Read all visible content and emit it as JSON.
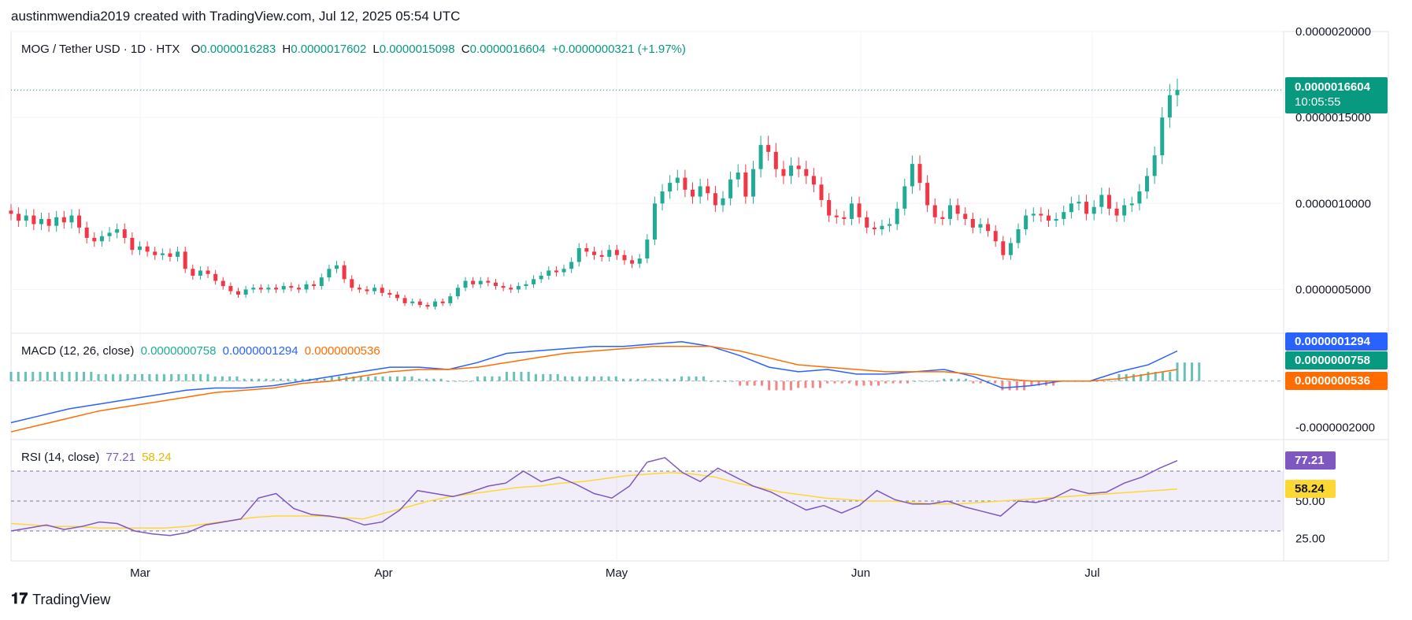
{
  "header": {
    "text": "austinmwendia2019 created with TradingView.com, Jul 12, 2025 05:54 UTC"
  },
  "footer": {
    "logo_text": "TradingView"
  },
  "colors": {
    "up": "#22ab94",
    "down": "#f23645",
    "macd": "#2962ff",
    "signal": "#ff6d00",
    "rsi": "#7e57c2",
    "rsi_ma": "#fdd835",
    "accent": "#089981"
  },
  "price_legend": {
    "symbol": "MOG / Tether USD · 1D · HTX",
    "o_label": "O",
    "o": "0.0000016283",
    "h_label": "H",
    "h": "0.0000017602",
    "l_label": "L",
    "l": "0.0000015098",
    "c_label": "C",
    "c": "0.0000016604",
    "change": "+0.0000000321 (+1.97%)"
  },
  "macd_legend": {
    "title": "MACD (12, 26, close)",
    "hist": "0.0000000758",
    "macd": "0.0000001294",
    "signal": "0.0000000536"
  },
  "rsi_legend": {
    "title": "RSI (14, close)",
    "rsi": "77.21",
    "ma": "58.24"
  },
  "tags": {
    "price": "0.0000016604",
    "countdown": "10:05:55",
    "macd": "0.0000001294",
    "hist": "0.0000000758",
    "signal": "0.0000000536",
    "rsi": "77.21",
    "rsi_ma": "58.24"
  },
  "chart_data": [
    {
      "type": "candlestick",
      "title": "MOG / Tether USD · 1D · HTX",
      "x_tick_labels": [
        "Mar",
        "Apr",
        "May",
        "Jun",
        "Jul"
      ],
      "y_tick_labels": [
        "0.0000020000",
        "0.0000015000",
        "0.0000010000",
        "0.0000005000"
      ],
      "ylim": [
        2.5e-07,
        2e-06
      ],
      "grid": true,
      "closes_approx": [
        9.4e-07,
        9e-07,
        9.3e-07,
        8.8e-07,
        9.1e-07,
        8.7e-07,
        9.2e-07,
        8.9e-07,
        9.3e-07,
        8.6e-07,
        8e-07,
        7.8e-07,
        8.1e-07,
        8.3e-07,
        8.5e-07,
        8e-07,
        7.3e-07,
        7.5e-07,
        7.2e-07,
        7e-07,
        7.1e-07,
        6.9e-07,
        7.2e-07,
        6.2e-07,
        5.8e-07,
        6.1e-07,
        5.9e-07,
        5.5e-07,
        5.2e-07,
        4.9e-07,
        4.7e-07,
        5e-07,
        5.1e-07,
        5e-07,
        5.1e-07,
        5e-07,
        5.2e-07,
        5.1e-07,
        5e-07,
        5.3e-07,
        5.2e-07,
        5.7e-07,
        6.2e-07,
        6.4e-07,
        5.6e-07,
        5.1e-07,
        5e-07,
        4.9e-07,
        5.1e-07,
        4.8e-07,
        4.7e-07,
        4.5e-07,
        4.2e-07,
        4.3e-07,
        4.1e-07,
        4e-07,
        4.3e-07,
        4.2e-07,
        4.6e-07,
        5.1e-07,
        5.5e-07,
        5.3e-07,
        5.5e-07,
        5.4e-07,
        5.2e-07,
        5.1e-07,
        5e-07,
        5.2e-07,
        5.3e-07,
        5.6e-07,
        5.8e-07,
        6.1e-07,
        6e-07,
        6.2e-07,
        6.6e-07,
        7.4e-07,
        7.2e-07,
        7e-07,
        6.9e-07,
        7.3e-07,
        7e-07,
        6.7e-07,
        6.5e-07,
        6.8e-07,
        7.9e-07,
        1e-06,
        1.07e-06,
        1.12e-06,
        1.15e-06,
        1.08e-06,
        1.04e-06,
        1.1e-06,
        1.06e-06,
        9.9e-07,
        1.03e-06,
        1.14e-06,
        1.18e-06,
        1.04e-06,
        1.2e-06,
        1.34e-06,
        1.3e-06,
        1.2e-06,
        1.16e-06,
        1.22e-06,
        1.2e-06,
        1.16e-06,
        1.11e-06,
        1.02e-06,
        9.3e-07,
        9.2e-07,
        9.1e-07,
        1e-06,
        9.2e-07,
        8.6e-07,
        8.5e-07,
        8.7e-07,
        8.8e-07,
        9.7e-07,
        1.1e-06,
        1.23e-06,
        1.12e-06,
        9.9e-07,
        9.2e-07,
        9.1e-07,
        9.9e-07,
        9.4e-07,
        9.1e-07,
        8.6e-07,
        8.8e-07,
        8.4e-07,
        7.8e-07,
        7e-07,
        7.7e-07,
        8.5e-07,
        9.3e-07,
        9.4e-07,
        9.3e-07,
        9e-07,
        9.1e-07,
        9.5e-07,
        1e-06,
        1.01e-06,
        9.4e-07,
        9.8e-07,
        1.05e-06,
        9.7e-07,
        9.3e-07,
        9.9e-07,
        1e-06,
        1.07e-06,
        1.16e-06,
        1.28e-06,
        1.5e-06,
        1.63e-06,
        1.66e-06
      ]
    },
    {
      "type": "line",
      "title": "MACD (12, 26, close)",
      "series": [
        {
          "name": "MACD",
          "values_approx": [
            -1.8e-07,
            -1.5e-07,
            -1.2e-07,
            -1e-07,
            -8e-08,
            -6e-08,
            -4e-08,
            -3e-08,
            -3e-08,
            -2e-08,
            0.0,
            2e-08,
            4e-08,
            6e-08,
            6e-08,
            5e-08,
            8e-08,
            1.2e-07,
            1.3e-07,
            1.4e-07,
            1.5e-07,
            1.5e-07,
            1.6e-07,
            1.7e-07,
            1.5e-07,
            1.1e-07,
            6e-08,
            4e-08,
            5e-08,
            3e-08,
            3e-08,
            4e-08,
            5e-08,
            2e-08,
            -3e-08,
            -2e-08,
            0.0,
            0.0,
            4e-08,
            7e-08,
            1.3e-07
          ]
        },
        {
          "name": "Signal",
          "values_approx": [
            -2.2e-07,
            -1.9e-07,
            -1.6e-07,
            -1.3e-07,
            -1.1e-07,
            -9e-08,
            -7e-08,
            -5e-08,
            -4e-08,
            -3e-08,
            -1e-08,
            0.0,
            2e-08,
            4e-08,
            5e-08,
            5e-08,
            6e-08,
            8e-08,
            1e-07,
            1.2e-07,
            1.3e-07,
            1.4e-07,
            1.5e-07,
            1.5e-07,
            1.5e-07,
            1.3e-07,
            1e-07,
            7e-08,
            6e-08,
            5e-08,
            4e-08,
            4e-08,
            4e-08,
            3e-08,
            1e-08,
            0.0,
            0.0,
            0.0,
            1e-08,
            3e-08,
            5e-08
          ]
        }
      ],
      "y_tick_labels": [
        "-0.0000002000"
      ]
    },
    {
      "type": "line",
      "title": "RSI (14, close)",
      "series": [
        {
          "name": "RSI",
          "values_approx": [
            30,
            32,
            34,
            31,
            33,
            36,
            35,
            30,
            28,
            27,
            29,
            34,
            36,
            38,
            52,
            55,
            45,
            41,
            40,
            38,
            34,
            36,
            44,
            57,
            55,
            53,
            56,
            60,
            62,
            70,
            63,
            66,
            61,
            55,
            52,
            60,
            76,
            79,
            69,
            63,
            72,
            66,
            60,
            56,
            50,
            44,
            47,
            42,
            47,
            57,
            51,
            48,
            48,
            50,
            46,
            43,
            40,
            50,
            49,
            52,
            58,
            55,
            56,
            62,
            66,
            72,
            77
          ]
        },
        {
          "name": "RSI MA",
          "values_approx": [
            35,
            34,
            33,
            33,
            32,
            32,
            32,
            32,
            33,
            35,
            37,
            39,
            40,
            40,
            40,
            39,
            38,
            42,
            46,
            50,
            53,
            55,
            57,
            59,
            60,
            62,
            63,
            65,
            67,
            68,
            69,
            68,
            66,
            62,
            59,
            56,
            54,
            52,
            51,
            50,
            50,
            49,
            48,
            48,
            49,
            50,
            51,
            52,
            53,
            54,
            55,
            56,
            57,
            58
          ]
        }
      ],
      "y_tick_labels": [
        "50.00",
        "25.00"
      ],
      "bands": [
        70,
        30
      ]
    }
  ]
}
